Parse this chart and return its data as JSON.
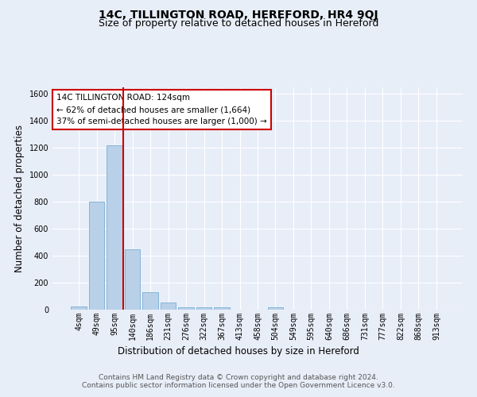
{
  "title": "14C, TILLINGTON ROAD, HEREFORD, HR4 9QJ",
  "subtitle": "Size of property relative to detached houses in Hereford",
  "xlabel": "Distribution of detached houses by size in Hereford",
  "ylabel": "Number of detached properties",
  "footnote1": "Contains HM Land Registry data © Crown copyright and database right 2024.",
  "footnote2": "Contains public sector information licensed under the Open Government Licence v3.0.",
  "bar_labels": [
    "4sqm",
    "49sqm",
    "95sqm",
    "140sqm",
    "186sqm",
    "231sqm",
    "276sqm",
    "322sqm",
    "367sqm",
    "413sqm",
    "458sqm",
    "504sqm",
    "549sqm",
    "595sqm",
    "640sqm",
    "686sqm",
    "731sqm",
    "777sqm",
    "822sqm",
    "868sqm",
    "913sqm"
  ],
  "bar_values": [
    25,
    800,
    1220,
    450,
    130,
    55,
    20,
    18,
    15,
    0,
    0,
    15,
    0,
    0,
    0,
    0,
    0,
    0,
    0,
    0,
    0
  ],
  "bar_color": "#b8d0e8",
  "bar_edge_color": "#7aafd4",
  "highlight_index": 3,
  "highlight_line_color": "#cc0000",
  "annotation_text": "14C TILLINGTON ROAD: 124sqm\n← 62% of detached houses are smaller (1,664)\n37% of semi-detached houses are larger (1,000) →",
  "annotation_box_color": "#ffffff",
  "annotation_box_edge": "#cc0000",
  "ylim": [
    0,
    1650
  ],
  "background_color": "#e8eef8",
  "grid_color": "#ffffff",
  "title_fontsize": 10,
  "subtitle_fontsize": 9,
  "axis_label_fontsize": 8.5,
  "tick_fontsize": 7,
  "footnote_fontsize": 6.5,
  "annotation_fontsize": 7.5
}
